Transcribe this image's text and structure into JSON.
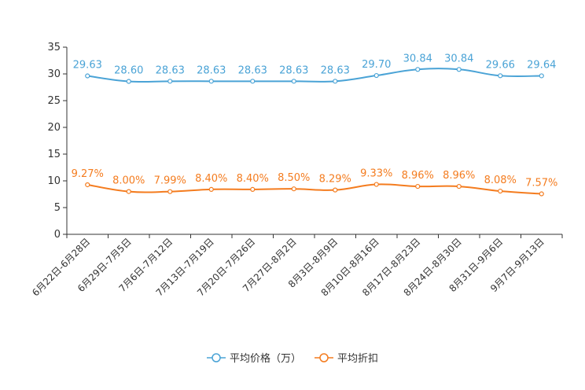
{
  "chart_data": {
    "type": "line",
    "title": "",
    "xlabel": "",
    "ylabel": "",
    "ylim": [
      0,
      35
    ],
    "yticks": [
      0,
      5,
      10,
      15,
      20,
      25,
      30,
      35
    ],
    "grid": false,
    "legend_position": "bottom-center",
    "categories": [
      "6月22日-6月28日",
      "6月29日-7月5日",
      "7月6日-7月12日",
      "7月13日-7月19日",
      "7月20日-7月26日",
      "7月27日-8月2日",
      "8月3日-8月9日",
      "8月10日-8月16日",
      "8月17日-8月23日",
      "8月24日-8月30日",
      "8月31日-9月6日",
      "9月7日-9月13日"
    ],
    "series": [
      {
        "name": "平均价格（万）",
        "color": "#4aa3d6",
        "values": [
          29.63,
          28.6,
          28.63,
          28.63,
          28.63,
          28.63,
          28.63,
          29.7,
          30.84,
          30.84,
          29.66,
          29.64
        ],
        "labels": [
          "29.63",
          "28.60",
          "28.63",
          "28.63",
          "28.63",
          "28.63",
          "28.63",
          "29.70",
          "30.84",
          "30.84",
          "29.66",
          "29.64"
        ]
      },
      {
        "name": "平均折扣",
        "color": "#f47c1f",
        "values": [
          9.27,
          8.0,
          7.99,
          8.4,
          8.4,
          8.5,
          8.29,
          9.33,
          8.96,
          8.96,
          8.08,
          7.57
        ],
        "labels": [
          "9.27%",
          "8.00%",
          "7.99%",
          "8.40%",
          "8.40%",
          "8.50%",
          "8.29%",
          "9.33%",
          "8.96%",
          "8.96%",
          "8.08%",
          "7.57%"
        ]
      }
    ]
  }
}
